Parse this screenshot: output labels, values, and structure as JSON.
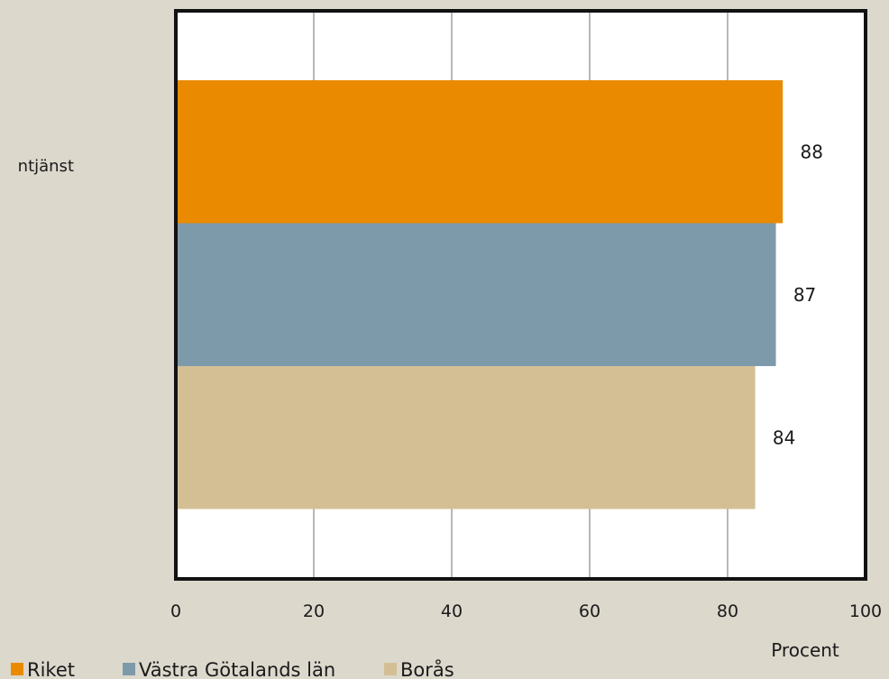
{
  "chart_data": {
    "type": "bar",
    "orientation": "horizontal",
    "categories": [
      "ntjänst"
    ],
    "series": [
      {
        "name": "Riket",
        "values": [
          88
        ],
        "color": "#ea8a00"
      },
      {
        "name": "Västra Götalands län",
        "values": [
          87
        ],
        "color": "#7d9aab"
      },
      {
        "name": "Borås",
        "values": [
          84
        ],
        "color": "#d4bf95"
      }
    ],
    "xlim": [
      0,
      100
    ],
    "xticks": [
      "0",
      "20",
      "40",
      "60",
      "80",
      "100"
    ],
    "xlabel": "Procent",
    "data_labels": [
      "88",
      "87",
      "84"
    ],
    "legend_position": "bottom-left",
    "grid": "vertical",
    "colors": {
      "background": "#dcd8cc",
      "plot": "#ffffff",
      "frame": "#111111",
      "grid": "#888888"
    }
  }
}
